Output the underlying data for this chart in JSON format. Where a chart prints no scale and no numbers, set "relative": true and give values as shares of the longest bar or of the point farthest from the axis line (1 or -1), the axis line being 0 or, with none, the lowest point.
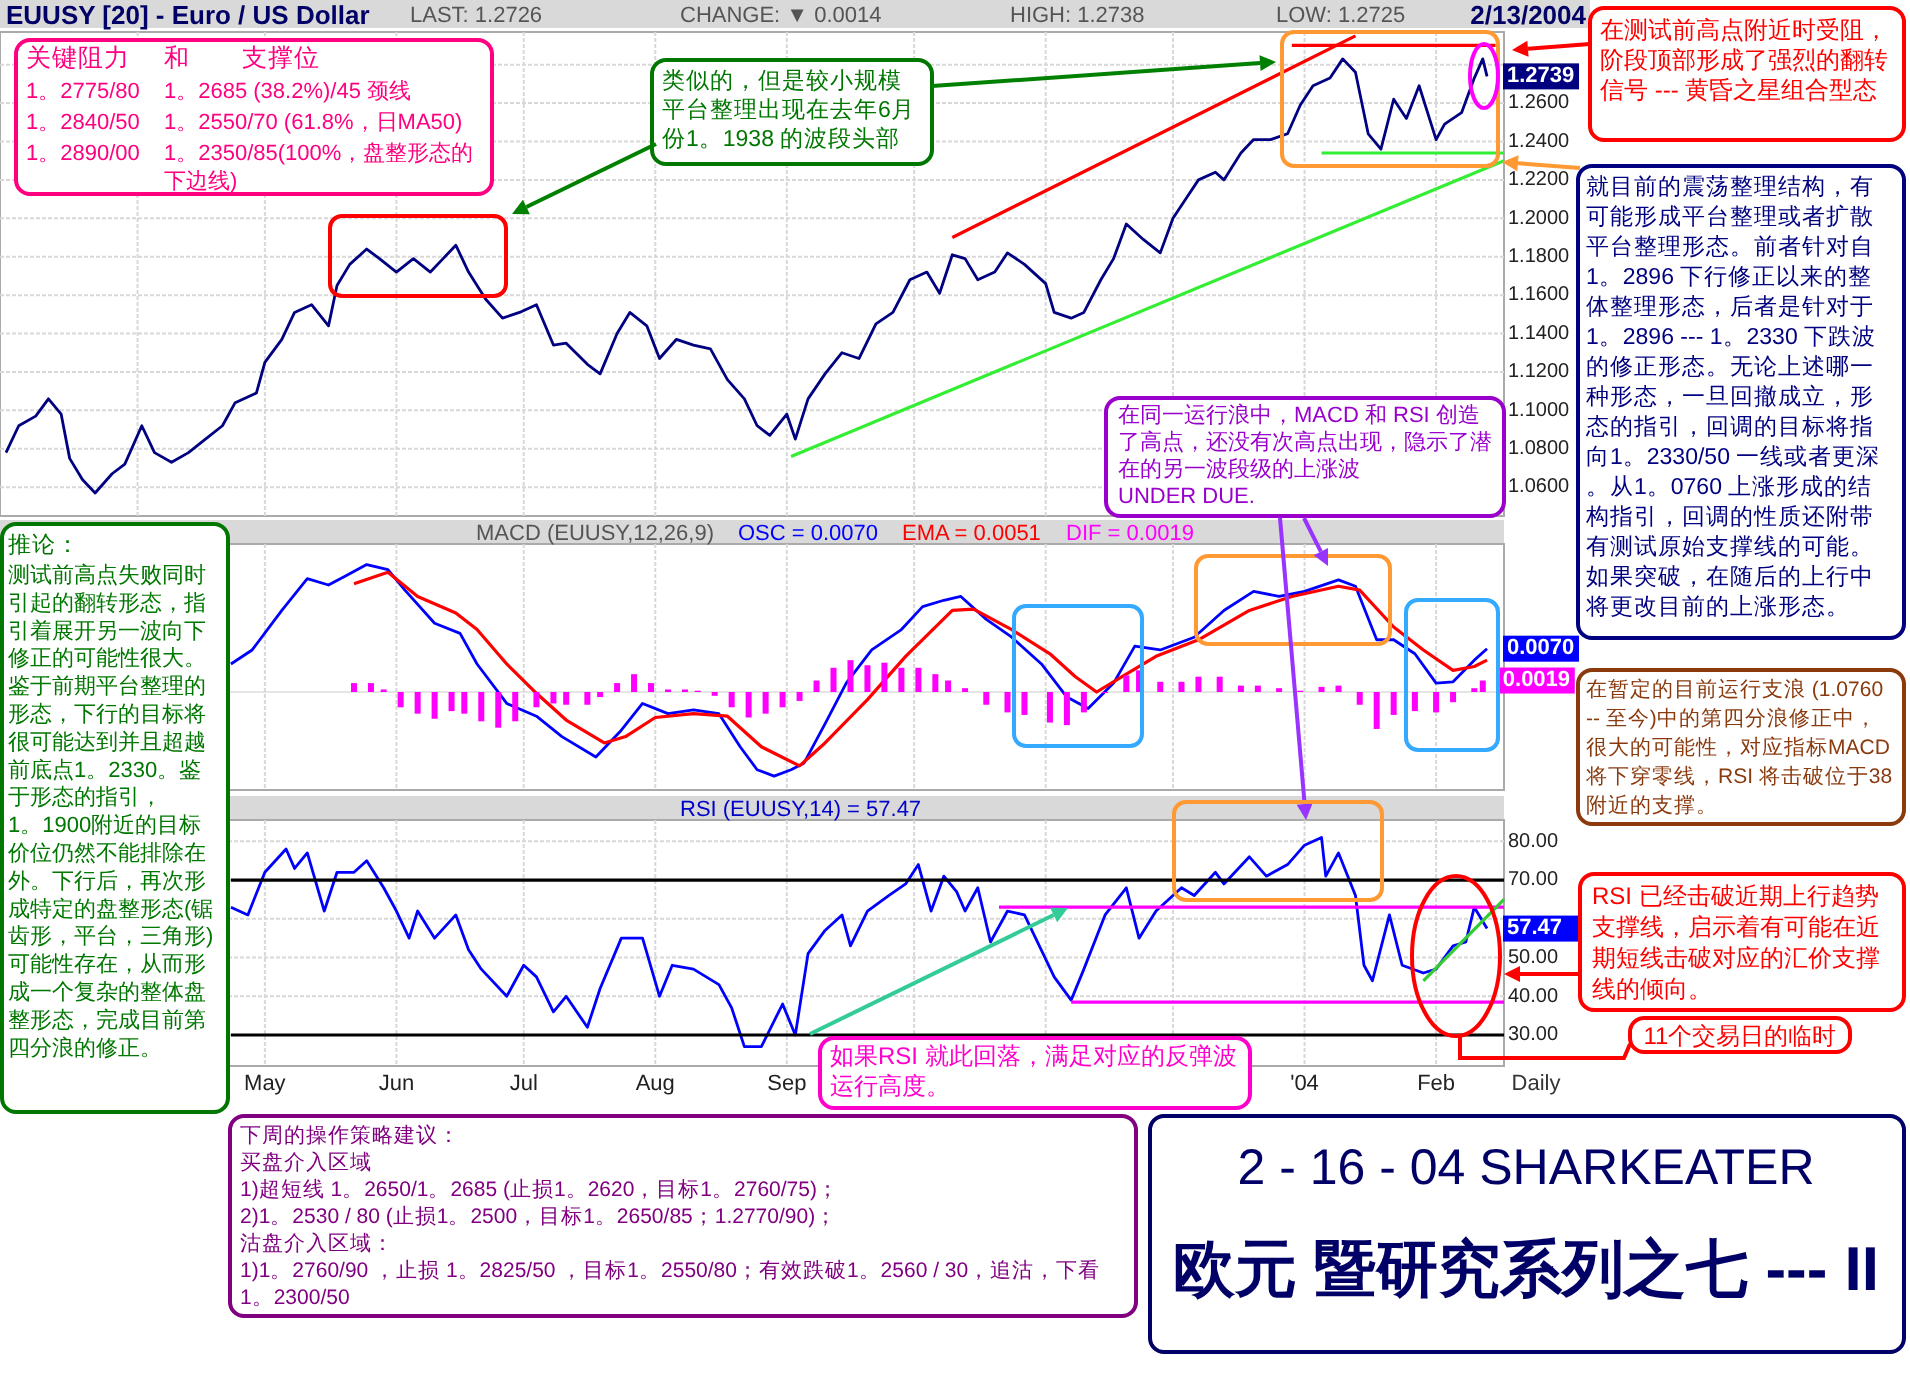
{
  "chart_data": [
    {
      "type": "line",
      "title": "EUUSY [20] - Euro / US Dollar",
      "grid": true,
      "tick_labels": "y",
      "xlim": [
        "2003-03-01",
        "2004-02-17"
      ],
      "xticks": [
        {
          "value": "2003-04-01",
          "label": null
        },
        {
          "value": "2003-05-01",
          "label": null
        },
        {
          "value": "2003-06-01",
          "label": null
        },
        {
          "value": "2003-07-01",
          "label": null
        },
        {
          "value": "2003-08-01",
          "label": null
        },
        {
          "value": "2003-09-01",
          "label": null
        },
        {
          "value": "2003-10-01",
          "label": null
        },
        {
          "value": "2003-11-01",
          "label": null
        },
        {
          "value": "2003-12-01",
          "label": null
        },
        {
          "value": "2004-01-01",
          "label": null
        },
        {
          "value": "2004-02-01",
          "label": null
        }
      ],
      "ylim": [
        1.045,
        1.297
      ],
      "yticks": [
        {
          "value": 1.06,
          "label": "1.0600"
        },
        {
          "value": 1.08,
          "label": "1.0800"
        },
        {
          "value": 1.1,
          "label": "1.1000"
        },
        {
          "value": 1.12,
          "label": "1.1200"
        },
        {
          "value": 1.14,
          "label": "1.1400"
        },
        {
          "value": 1.16,
          "label": "1.1600"
        },
        {
          "value": 1.18,
          "label": "1.1800"
        },
        {
          "value": 1.2,
          "label": "1.2000"
        },
        {
          "value": 1.22,
          "label": "1.2200"
        },
        {
          "value": 1.24,
          "label": "1.2400"
        },
        {
          "value": 1.26,
          "label": "1.2600"
        },
        {
          "value": 1.28,
          "label": null
        }
      ],
      "series": [
        {
          "color": "#000080",
          "x": [
            "2003-03-01",
            "2003-03-04",
            "2003-03-08",
            "2003-03-11",
            "2003-03-14",
            "2003-03-16",
            "2003-03-19",
            "2003-03-22",
            "2003-03-26",
            "2003-03-29",
            "2003-04-02",
            "2003-04-05",
            "2003-04-09",
            "2003-04-13",
            "2003-04-17",
            "2003-04-21",
            "2003-04-24",
            "2003-04-29",
            "2003-05-01",
            "2003-05-05",
            "2003-05-08",
            "2003-05-12",
            "2003-05-16",
            "2003-05-18",
            "2003-05-21",
            "2003-05-25",
            "2003-05-28",
            "2003-06-01",
            "2003-06-05",
            "2003-06-09",
            "2003-06-12",
            "2003-06-15",
            "2003-06-18",
            "2003-06-22",
            "2003-06-26",
            "2003-06-30",
            "2003-07-04",
            "2003-07-08",
            "2003-07-11",
            "2003-07-16",
            "2003-07-19",
            "2003-07-23",
            "2003-07-26",
            "2003-07-30",
            "2003-08-02",
            "2003-08-06",
            "2003-08-10",
            "2003-08-14",
            "2003-08-18",
            "2003-08-22",
            "2003-08-25",
            "2003-08-28",
            "2003-09-01",
            "2003-09-03",
            "2003-09-06",
            "2003-09-10",
            "2003-09-14",
            "2003-09-18",
            "2003-09-22",
            "2003-09-26",
            "2003-09-30",
            "2003-10-04",
            "2003-10-07",
            "2003-10-10",
            "2003-10-13",
            "2003-10-16",
            "2003-10-20",
            "2003-10-23",
            "2003-10-27",
            "2003-11-01",
            "2003-11-03",
            "2003-11-07",
            "2003-11-10",
            "2003-11-14",
            "2003-11-17",
            "2003-11-20",
            "2003-11-24",
            "2003-11-28",
            "2003-12-01",
            "2003-12-04",
            "2003-12-07",
            "2003-12-11",
            "2003-12-13",
            "2003-12-17",
            "2003-12-20",
            "2003-12-24",
            "2003-12-28",
            "2003-12-31",
            "2004-01-03",
            "2004-01-07",
            "2004-01-10",
            "2004-01-13",
            "2004-01-16",
            "2004-01-19",
            "2004-01-22",
            "2004-01-25",
            "2004-01-28",
            "2004-02-01",
            "2004-02-03",
            "2004-02-07",
            "2004-02-10",
            "2004-02-12",
            "2004-02-13"
          ],
          "values": [
            1.078,
            1.092,
            1.097,
            1.106,
            1.098,
            1.075,
            1.064,
            1.057,
            1.067,
            1.072,
            1.092,
            1.078,
            1.073,
            1.078,
            1.085,
            1.092,
            1.104,
            1.109,
            1.125,
            1.137,
            1.151,
            1.155,
            1.144,
            1.165,
            1.176,
            1.184,
            1.179,
            1.172,
            1.179,
            1.172,
            1.179,
            1.186,
            1.172,
            1.158,
            1.148,
            1.151,
            1.155,
            1.134,
            1.135,
            1.124,
            1.119,
            1.14,
            1.151,
            1.144,
            1.127,
            1.137,
            1.134,
            1.132,
            1.116,
            1.106,
            1.092,
            1.087,
            1.098,
            1.085,
            1.106,
            1.119,
            1.13,
            1.127,
            1.145,
            1.151,
            1.168,
            1.172,
            1.161,
            1.181,
            1.179,
            1.168,
            1.172,
            1.182,
            1.176,
            1.166,
            1.151,
            1.148,
            1.151,
            1.168,
            1.179,
            1.197,
            1.189,
            1.182,
            1.2,
            1.21,
            1.22,
            1.224,
            1.22,
            1.234,
            1.241,
            1.241,
            1.244,
            1.259,
            1.269,
            1.273,
            1.283,
            1.276,
            1.244,
            1.236,
            1.262,
            1.252,
            1.269,
            1.241,
            1.249,
            1.255,
            1.273,
            1.283,
            1.2739
          ]
        },
        {
          "color": "#ff0000",
          "x": [
            "2003-10-10",
            "2004-01-13"
          ],
          "values": [
            1.19,
            1.295
          ]
        },
        {
          "color": "#33ee33",
          "x": [
            "2003-09-02",
            "2004-02-17"
          ],
          "values": [
            1.076,
            1.23
          ]
        },
        {
          "color": "#ff0000",
          "x": [
            "2003-12-29",
            "2004-02-15"
          ],
          "values": [
            1.29,
            1.29
          ]
        },
        {
          "color": "#33ee33",
          "x": [
            "2004-01-05",
            "2004-02-17"
          ],
          "values": [
            1.234,
            1.234
          ]
        }
      ],
      "annotations": [
        "LAST: 1.2726",
        "CHANGE: ▼ 0.0014",
        "HIGH: 1.2738",
        "LOW: 1.2725",
        "2/13/2004",
        "关键阻力",
        "1。2775/80",
        "1。2840/50",
        "1。2890/00",
        "和",
        "支撑位",
        "1。2685 (38.2%)/45 颈线",
        "1。2550/70 (61.8%，日MA50)",
        "1。2350/85(100%，盘整形态的下边线)",
        "类似的，但是较小规模平台整理出现在去年6月份1。1938 的波段头部",
        "在测试前高点附近时受阻，阶段顶部形成了强烈的翻转信号 --- 黄昏之星组合型态",
        "就目前的震荡整理结构，有可能形成平台整理或者扩散平台整理形态。前者针对自1。2896 下行修正以来的整体整理形态，后者是针对于1。2896 --- 1。2330 下跌波的修正形态。无论上述哪一种形态，一旦回撤成立，形态的指引，回调的目标将指向1。2330/50 一线或者更深。从1。0760 上涨形成的结构指引，回调的性质还附带有测试原始支撑线的可能。如果突破，在随后的上行中将更改目前的上涨形态。",
        "在同一运行浪中，MACD 和 RSI 创造了高点，还没有次高点出现，隐示了潜在的另一波段级的上涨波\nUNDER DUE.",
        "在暂定的目前运行支浪 (1.0760 -- 至今)中的第四分浪修正中，很大的可能性，对应指标MACD将下穿零线，RSI 将击破位于38附近的支撑。",
        "RSI 已经击破近期上行趋势支撑线，启示着有可能在近期短线击破对应的汇价支撑线的倾向。",
        "11个交易日的临时",
        "推论：",
        "测试前高点失败同时引起的翻转形态，指引着展开另一波向下修正的可能性很大。鉴于前期平台整理的形态，下行的目标将很可能达到并且超越前底点1。2330。鉴于形态的指引，1。1900附近的目标价位仍然不能排除在外。下行后，再次形成特定的盘整形态(锯齿形，平台，三角形)可能性存在，从而形成一个复杂的整体盘整形态，完成目前第四分浪的修正。",
        "如果RSI 就此回落，满足对应的反弹波运行高度。",
        "下周的操作策略建议：",
        "买盘介入区域",
        "1)超短线 1。2650/1。2685 (止损1。2620，目标1。2760/75)；",
        "2)1。2530 / 80 (止损1。2500，目标1。2650/85；1.2770/90)；",
        "沽盘介入区域：",
        "1)1。2760/90 ，止损 1。2825/50 ，目标1。2550/80；有效跌破1。2560 / 30，追沽，下看1。2300/50",
        "2 - 16 - 04   SHARKEATER",
        "欧元  暨研究系列之七 --- II",
        {
          "text": "1.2739",
          "x": "2004-02-13",
          "y": 1.2739
        }
      ]
    },
    {
      "type": "line",
      "title": "MACD (EUUSY,12,26,9)",
      "relative": true,
      "legend": "top",
      "grid": "x",
      "tick_labels": false,
      "xlim": [
        "2003-03-01",
        "2004-02-17"
      ],
      "xticks": [
        {
          "value": "2003-05-01",
          "label": null
        },
        {
          "value": "2003-06-01",
          "label": null
        },
        {
          "value": "2003-07-01",
          "label": null
        },
        {
          "value": "2003-08-01",
          "label": null
        },
        {
          "value": "2003-09-01",
          "label": null
        },
        {
          "value": "2003-10-01",
          "label": null
        },
        {
          "value": "2003-11-01",
          "label": null
        },
        {
          "value": "2003-12-01",
          "label": null
        },
        {
          "value": "2004-01-01",
          "label": null
        },
        {
          "value": "2004-02-01",
          "label": null
        }
      ],
      "series": [
        {
          "name": "OSC = 0.0070",
          "color": "#0000ff",
          "x": [
            "2003-04-23",
            "2003-04-28",
            "2003-05-05",
            "2003-05-11",
            "2003-05-16",
            "2003-05-20",
            "2003-05-25",
            "2003-05-30",
            "2003-06-03",
            "2003-06-10",
            "2003-06-16",
            "2003-06-20",
            "2003-06-27",
            "2003-07-04",
            "2003-07-10",
            "2003-07-18",
            "2003-07-24",
            "2003-07-29",
            "2003-08-04",
            "2003-08-10",
            "2003-08-16",
            "2003-08-21",
            "2003-08-25",
            "2003-08-29",
            "2003-09-02",
            "2003-09-05",
            "2003-09-10",
            "2003-09-15",
            "2003-09-21",
            "2003-09-28",
            "2003-10-03",
            "2003-10-08",
            "2003-10-12",
            "2003-10-18",
            "2003-10-24",
            "2003-10-31",
            "2003-11-06",
            "2003-11-11",
            "2003-11-17",
            "2003-11-22",
            "2003-11-28",
            "2003-12-06",
            "2003-12-13",
            "2003-12-20",
            "2003-12-26",
            "2004-01-01",
            "2004-01-09",
            "2004-01-13",
            "2004-01-18",
            "2004-01-22",
            "2004-01-27",
            "2004-02-01",
            "2004-02-05",
            "2004-02-10",
            "2004-02-13"
          ],
          "values": [
            0.22,
            0.33,
            0.64,
            0.89,
            0.84,
            0.91,
            1.0,
            0.96,
            0.8,
            0.54,
            0.46,
            0.22,
            -0.09,
            -0.19,
            -0.35,
            -0.51,
            -0.3,
            -0.09,
            -0.17,
            -0.14,
            -0.17,
            -0.43,
            -0.61,
            -0.66,
            -0.61,
            -0.56,
            -0.25,
            0.07,
            0.33,
            0.49,
            0.67,
            0.72,
            0.75,
            0.57,
            0.43,
            0.22,
            -0.04,
            -0.13,
            0.07,
            0.36,
            0.33,
            0.43,
            0.64,
            0.79,
            0.75,
            0.79,
            0.88,
            0.83,
            0.41,
            0.41,
            0.3,
            0.07,
            0.08,
            0.25,
            0.34
          ]
        },
        {
          "name": "EMA = 0.0051",
          "color": "#ff0000",
          "x": [
            "2003-05-22",
            "2003-05-30",
            "2003-06-06",
            "2003-06-15",
            "2003-06-20",
            "2003-06-27",
            "2003-07-04",
            "2003-07-11",
            "2003-07-20",
            "2003-07-25",
            "2003-08-01",
            "2003-08-10",
            "2003-08-18",
            "2003-08-26",
            "2003-09-04",
            "2003-09-10",
            "2003-09-20",
            "2003-09-29",
            "2003-10-10",
            "2003-10-15",
            "2003-10-24",
            "2003-11-02",
            "2003-11-08",
            "2003-11-13",
            "2003-11-19",
            "2003-11-27",
            "2003-12-07",
            "2003-12-19",
            "2003-12-29",
            "2004-01-09",
            "2004-01-14",
            "2004-01-22",
            "2004-01-29",
            "2004-02-05",
            "2004-02-10",
            "2004-02-13"
          ],
          "values": [
            0.85,
            0.94,
            0.75,
            0.62,
            0.49,
            0.22,
            -0.01,
            -0.22,
            -0.4,
            -0.35,
            -0.2,
            -0.17,
            -0.19,
            -0.43,
            -0.58,
            -0.4,
            -0.06,
            0.28,
            0.64,
            0.65,
            0.49,
            0.3,
            0.12,
            0.0,
            0.12,
            0.28,
            0.41,
            0.64,
            0.75,
            0.83,
            0.8,
            0.51,
            0.33,
            0.17,
            0.2,
            0.25
          ]
        },
        {
          "name": "DIF = 0.0019",
          "type": "bar",
          "color": "#ff00ff",
          "x": [
            "2003-05-22",
            "2003-05-26",
            "2003-05-29",
            "2003-06-02",
            "2003-06-06",
            "2003-06-10",
            "2003-06-14",
            "2003-06-17",
            "2003-06-21",
            "2003-06-25",
            "2003-06-29",
            "2003-07-04",
            "2003-07-08",
            "2003-07-11",
            "2003-07-16",
            "2003-07-19",
            "2003-07-23",
            "2003-07-27",
            "2003-07-31",
            "2003-08-04",
            "2003-08-08",
            "2003-08-11",
            "2003-08-15",
            "2003-08-19",
            "2003-08-23",
            "2003-08-27",
            "2003-08-31",
            "2003-09-04",
            "2003-09-08",
            "2003-09-12",
            "2003-09-16",
            "2003-09-20",
            "2003-09-24",
            "2003-09-28",
            "2003-10-02",
            "2003-10-06",
            "2003-10-09",
            "2003-10-13",
            "2003-10-18",
            "2003-10-23",
            "2003-10-27",
            "2003-11-02",
            "2003-11-06",
            "2003-11-10",
            "2003-11-15",
            "2003-11-20",
            "2003-11-23",
            "2003-11-28",
            "2003-12-03",
            "2003-12-07",
            "2003-12-12",
            "2003-12-17",
            "2003-12-21",
            "2003-12-26",
            "2003-12-31",
            "2004-01-05",
            "2004-01-09",
            "2004-01-14",
            "2004-01-18",
            "2004-01-22",
            "2004-01-27",
            "2004-02-01",
            "2004-02-05",
            "2004-02-10",
            "2004-02-12"
          ],
          "values": [
            0.07,
            0.07,
            0.02,
            -0.12,
            -0.17,
            -0.21,
            -0.15,
            -0.17,
            -0.23,
            -0.28,
            -0.23,
            -0.12,
            -0.09,
            -0.1,
            -0.1,
            -0.04,
            0.07,
            0.14,
            0.07,
            0.02,
            0.02,
            0.01,
            -0.03,
            -0.12,
            -0.2,
            -0.17,
            -0.12,
            -0.07,
            0.09,
            0.19,
            0.25,
            0.21,
            0.23,
            0.19,
            0.19,
            0.14,
            0.09,
            0.03,
            -0.1,
            -0.16,
            -0.18,
            -0.24,
            -0.26,
            -0.16,
            0.0,
            0.13,
            0.17,
            0.08,
            0.08,
            0.12,
            0.12,
            0.05,
            0.05,
            0.03,
            0.01,
            0.04,
            0.05,
            -0.1,
            -0.29,
            -0.18,
            -0.15,
            -0.16,
            -0.08,
            0.03,
            0.09
          ]
        }
      ],
      "annotations": [
        {
          "text": "0.0070",
          "x": "2004-02-13",
          "y": 0.34
        },
        {
          "text": "0.0019",
          "x": "2004-02-12",
          "y": 0.09
        }
      ]
    },
    {
      "type": "line",
      "title": "RSI (EUUSY,14) = 57.47",
      "grid": true,
      "xlim": [
        "2003-03-01",
        "2004-02-17"
      ],
      "xticks": [
        {
          "value": "2003-05-01",
          "label": "May"
        },
        {
          "value": "2003-06-01",
          "label": "Jun"
        },
        {
          "value": "2003-07-01",
          "label": "Jul"
        },
        {
          "value": "2003-08-01",
          "label": "Aug"
        },
        {
          "value": "2003-09-01",
          "label": "Sep"
        },
        {
          "value": "2003-10-01",
          "label": null
        },
        {
          "value": "2003-11-01",
          "label": null
        },
        {
          "value": "2003-12-01",
          "label": null
        },
        {
          "value": "2004-01-01",
          "label": "'04"
        },
        {
          "value": "2004-02-01",
          "label": "Feb"
        }
      ],
      "ylim": [
        22,
        85.5
      ],
      "yticks": [
        {
          "value": 30,
          "label": "30.00"
        },
        {
          "value": 40,
          "label": "40.00"
        },
        {
          "value": 50,
          "label": "50.00"
        },
        {
          "value": 60,
          "label": null
        },
        {
          "value": 70,
          "label": "70.00"
        },
        {
          "value": 80,
          "label": "80.00"
        }
      ],
      "series": [
        {
          "color": "#0000ff",
          "x": [
            "2003-04-23",
            "2003-04-27",
            "2003-05-01",
            "2003-05-06",
            "2003-05-08",
            "2003-05-11",
            "2003-05-15",
            "2003-05-18",
            "2003-05-22",
            "2003-05-25",
            "2003-05-29",
            "2003-06-01",
            "2003-06-04",
            "2003-06-06",
            "2003-06-10",
            "2003-06-15",
            "2003-06-18",
            "2003-06-21",
            "2003-06-27",
            "2003-07-01",
            "2003-07-04",
            "2003-07-08",
            "2003-07-11",
            "2003-07-16",
            "2003-07-19",
            "2003-07-24",
            "2003-07-29",
            "2003-08-02",
            "2003-08-05",
            "2003-08-10",
            "2003-08-16",
            "2003-08-19",
            "2003-08-22",
            "2003-08-26",
            "2003-08-31",
            "2003-09-03",
            "2003-09-06",
            "2003-09-10",
            "2003-09-14",
            "2003-09-16",
            "2003-09-20",
            "2003-09-25",
            "2003-09-29",
            "2003-10-02",
            "2003-10-05",
            "2003-10-08",
            "2003-10-11",
            "2003-10-13",
            "2003-10-16",
            "2003-10-19",
            "2003-10-23",
            "2003-10-27",
            "2003-11-03",
            "2003-11-07",
            "2003-11-10",
            "2003-11-15",
            "2003-11-20",
            "2003-11-23",
            "2003-11-27",
            "2003-12-03",
            "2003-12-06",
            "2003-12-11",
            "2003-12-13",
            "2003-12-19",
            "2003-12-23",
            "2003-12-28",
            "2004-01-01",
            "2004-01-05",
            "2004-01-06",
            "2004-01-09",
            "2004-01-13",
            "2004-01-15",
            "2004-01-17",
            "2004-01-21",
            "2004-01-24",
            "2004-01-29",
            "2004-02-01",
            "2004-02-05",
            "2004-02-08",
            "2004-02-10",
            "2004-02-13"
          ],
          "values": [
            63,
            61,
            72,
            78,
            73,
            77,
            62,
            72,
            72,
            75,
            68,
            62,
            55,
            62,
            55,
            61,
            52,
            47,
            40,
            48,
            45,
            36,
            40,
            32,
            42,
            55,
            55,
            40,
            48,
            47,
            43,
            37,
            27,
            27,
            38,
            30,
            51,
            57,
            61,
            53,
            62,
            66,
            69,
            74,
            62,
            71,
            67,
            62,
            68,
            54,
            62,
            61,
            45,
            39,
            47,
            61,
            68,
            55,
            62,
            68,
            66,
            72,
            69,
            76,
            71,
            74,
            79,
            81,
            71,
            77,
            66,
            48,
            44,
            61,
            48,
            46,
            47,
            53,
            54,
            63,
            57.47
          ]
        },
        {
          "color": "#000000",
          "x": [
            "2003-04-23",
            "2004-02-17"
          ],
          "values": [
            70,
            70
          ]
        },
        {
          "color": "#000000",
          "x": [
            "2003-04-23",
            "2004-02-17"
          ],
          "values": [
            30,
            30
          ]
        },
        {
          "color": "#ff00ff",
          "x": [
            "2003-10-21",
            "2004-02-17"
          ],
          "values": [
            63,
            63
          ]
        },
        {
          "color": "#ff00ff",
          "x": [
            "2003-11-07",
            "2004-02-17"
          ],
          "values": [
            38.5,
            38.5
          ]
        },
        {
          "color": "#33cc33",
          "x": [
            "2004-01-29",
            "2004-02-17"
          ],
          "values": [
            44,
            65
          ]
        }
      ],
      "annotations": [
        "Daily",
        {
          "text": "57.47",
          "x": "2004-02-13",
          "y": 57.47
        }
      ]
    }
  ]
}
